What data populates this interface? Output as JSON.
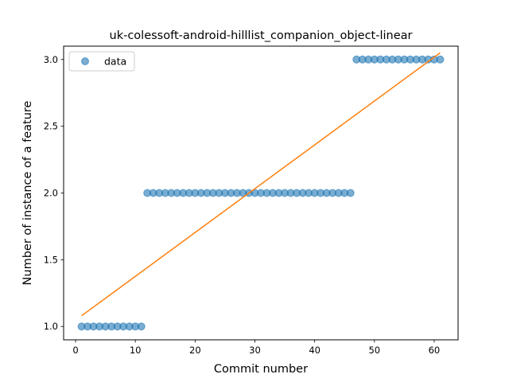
{
  "chart_data": {
    "type": "scatter",
    "title": "uk-colessoft-android-hilllist_companion_object-linear",
    "xlabel": "Commit number",
    "ylabel": "Number of instance of a feature",
    "xlim": [
      -2,
      64
    ],
    "ylim": [
      0.9,
      3.1
    ],
    "xticks": [
      0,
      10,
      20,
      30,
      40,
      50,
      60
    ],
    "yticks": [
      1.0,
      1.5,
      2.0,
      2.5,
      3.0
    ],
    "xtick_labels": [
      "0",
      "10",
      "20",
      "30",
      "40",
      "50",
      "60"
    ],
    "ytick_labels": [
      "1.0",
      "1.5",
      "2.0",
      "2.5",
      "3.0"
    ],
    "legend_position": "top-left",
    "series": [
      {
        "name": "data",
        "kind": "scatter",
        "color": "#1f77b4",
        "x": [
          1,
          2,
          3,
          4,
          5,
          6,
          7,
          8,
          9,
          10,
          11,
          12,
          13,
          14,
          15,
          16,
          17,
          18,
          19,
          20,
          21,
          22,
          23,
          24,
          25,
          26,
          27,
          28,
          29,
          30,
          31,
          32,
          33,
          34,
          35,
          36,
          37,
          38,
          39,
          40,
          41,
          42,
          43,
          44,
          45,
          46,
          47,
          48,
          49,
          50,
          51,
          52,
          53,
          54,
          55,
          56,
          57,
          58,
          59,
          60,
          61
        ],
        "y": [
          1,
          1,
          1,
          1,
          1,
          1,
          1,
          1,
          1,
          1,
          1,
          2,
          2,
          2,
          2,
          2,
          2,
          2,
          2,
          2,
          2,
          2,
          2,
          2,
          2,
          2,
          2,
          2,
          2,
          2,
          2,
          2,
          2,
          2,
          2,
          2,
          2,
          2,
          2,
          2,
          2,
          2,
          2,
          2,
          2,
          2,
          3,
          3,
          3,
          3,
          3,
          3,
          3,
          3,
          3,
          3,
          3,
          3,
          3,
          3,
          3
        ]
      },
      {
        "kind": "line",
        "color": "#ff7f0e",
        "x": [
          1,
          61
        ],
        "y": [
          1.08,
          3.05
        ]
      }
    ]
  }
}
